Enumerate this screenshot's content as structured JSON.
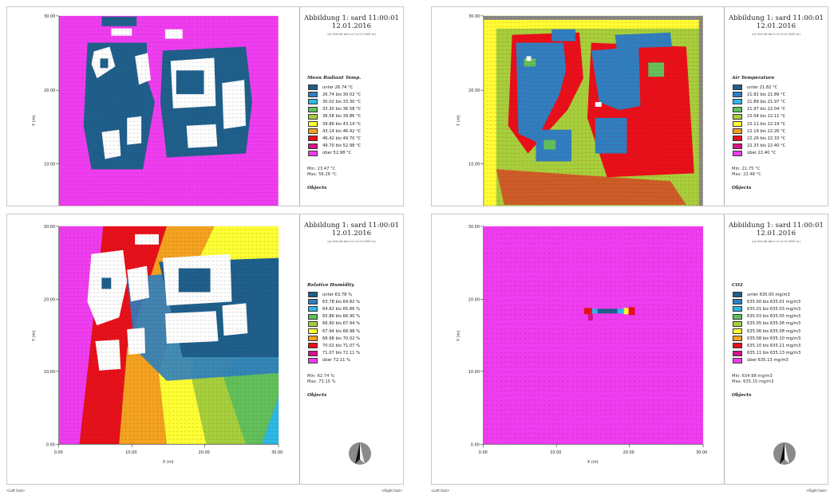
{
  "header_title": "Abbildung 1: sard 11:00:01",
  "header_date": "12.01.2016",
  "header_sub_left": "x/y Schnitt bei k=0 (z=0.2000 m)",
  "header_sub_right": "x/y Schnitt bei k=0 (z=0.2000 m)",
  "minmax_separator": "",
  "objects_label": "Objects",
  "footer_left": "<Left foot>",
  "footer_right": "<Right foot>",
  "north_arrow_icon": "north-arrow-icon",
  "panels": [
    {
      "legend_title": "Mean Radiant Temp.",
      "legend": [
        {
          "label": "unter 26.74 °C",
          "color": "#1f5f8b"
        },
        {
          "label": "26.74 bis 30.02 °C",
          "color": "#2f7fc0"
        },
        {
          "label": "30.02 bis 33.30 °C",
          "color": "#2fb8e6"
        },
        {
          "label": "33.30 bis 36.58 °C",
          "color": "#62c05a"
        },
        {
          "label": "36.58 bis 39.86 °C",
          "color": "#a6cf3c"
        },
        {
          "label": "39.86 bis 43.14 °C",
          "color": "#ffff33"
        },
        {
          "label": "43.14 bis 46.42 °C",
          "color": "#f5a21e"
        },
        {
          "label": "46.42 bis 49.70 °C",
          "color": "#e8101a"
        },
        {
          "label": "49.70 bis 52.98 °C",
          "color": "#d4148a"
        },
        {
          "label": "über 52.98 °C",
          "color": "#f03cf0"
        }
      ],
      "min": "Min: 23.47 °C",
      "max": "Max: 56.26 °C"
    },
    {
      "legend_title": "Air Temperature",
      "legend": [
        {
          "label": "unter 21.82 °C",
          "color": "#1f5f8b"
        },
        {
          "label": "21.82 bis 21.89 °C",
          "color": "#2f7fc0"
        },
        {
          "label": "21.89 bis 21.97 °C",
          "color": "#2fb8e6"
        },
        {
          "label": "21.97 bis 22.04 °C",
          "color": "#62c05a"
        },
        {
          "label": "22.04 bis 22.11 °C",
          "color": "#a6cf3c"
        },
        {
          "label": "22.11 bis 22.19 °C",
          "color": "#ffff33"
        },
        {
          "label": "22.19 bis 22.26 °C",
          "color": "#f5a21e"
        },
        {
          "label": "22.26 bis 22.33 °C",
          "color": "#e8101a"
        },
        {
          "label": "22.33 bis 22.40 °C",
          "color": "#d4148a"
        },
        {
          "label": "über 22.40 °C",
          "color": "#f03cf0"
        }
      ],
      "min": "Min: 21.75 °C",
      "max": "Max: 22.48 °C"
    },
    {
      "legend_title": "Relative Humidity",
      "legend": [
        {
          "label": "unter 63.78 %",
          "color": "#1f5f8b"
        },
        {
          "label": "63.78 bis 64.82 %",
          "color": "#2f7fc0"
        },
        {
          "label": "64.82 bis 65.86 %",
          "color": "#2fb8e6"
        },
        {
          "label": "65.86 bis 66.90 %",
          "color": "#62c05a"
        },
        {
          "label": "66.90 bis 67.94 %",
          "color": "#a6cf3c"
        },
        {
          "label": "67.94 bis 68.98 %",
          "color": "#ffff33"
        },
        {
          "label": "68.98 bis 70.02 %",
          "color": "#f5a21e"
        },
        {
          "label": "70.02 bis 71.07 %",
          "color": "#e8101a"
        },
        {
          "label": "71.07 bis 72.11 %",
          "color": "#d4148a"
        },
        {
          "label": "über 72.11 %",
          "color": "#f03cf0"
        }
      ],
      "min": "Min: 62.74 %",
      "max": "Max: 73.15 %"
    },
    {
      "legend_title": "CO2",
      "legend": [
        {
          "label": "unter 635.00 mg/m3",
          "color": "#1f5f8b"
        },
        {
          "label": "635.00 bis 635.01 mg/m3",
          "color": "#2f7fc0"
        },
        {
          "label": "635.01 bis 635.03 mg/m3",
          "color": "#2fb8e6"
        },
        {
          "label": "635.03 bis 635.05 mg/m3",
          "color": "#62c05a"
        },
        {
          "label": "635.05 bis 635.06 mg/m3",
          "color": "#a6cf3c"
        },
        {
          "label": "635.06 bis 635.08 mg/m3",
          "color": "#ffff33"
        },
        {
          "label": "635.08 bis 635.10 mg/m3",
          "color": "#f5a21e"
        },
        {
          "label": "635.10 bis 635.11 mg/m3",
          "color": "#e8101a"
        },
        {
          "label": "635.11 bis 635.13 mg/m3",
          "color": "#d4148a"
        },
        {
          "label": "über 635.13 mg/m3",
          "color": "#f03cf0"
        }
      ],
      "min": "Min: 634.98 mg/m3",
      "max": "Max: 635.15 mg/m3"
    }
  ],
  "chart_data": [
    {
      "type": "heatmap",
      "title": "Mean Radiant Temp.",
      "xlabel": "",
      "ylabel": "Y (m)",
      "y_ticks": [
        "10.00",
        "20.00",
        "30.00"
      ]
    },
    {
      "type": "heatmap",
      "title": "Air Temperature",
      "xlabel": "",
      "ylabel": "Y (m)",
      "y_ticks": [
        "10.00",
        "20.00",
        "30.00"
      ]
    },
    {
      "type": "heatmap",
      "title": "Relative Humidity",
      "xlabel": "X (m)",
      "ylabel": "Y (m)",
      "x_ticks": [
        "0.00",
        "10.00",
        "20.00",
        "30.00"
      ],
      "y_ticks": [
        "0.00",
        "10.00",
        "20.00",
        "30.00"
      ]
    },
    {
      "type": "heatmap",
      "title": "CO2",
      "xlabel": "X (m)",
      "ylabel": "Y (m)",
      "x_ticks": [
        "0.00",
        "10.00",
        "20.00",
        "30.00"
      ],
      "y_ticks": [
        "0.00",
        "10.00",
        "20.00",
        "30.00"
      ]
    }
  ]
}
